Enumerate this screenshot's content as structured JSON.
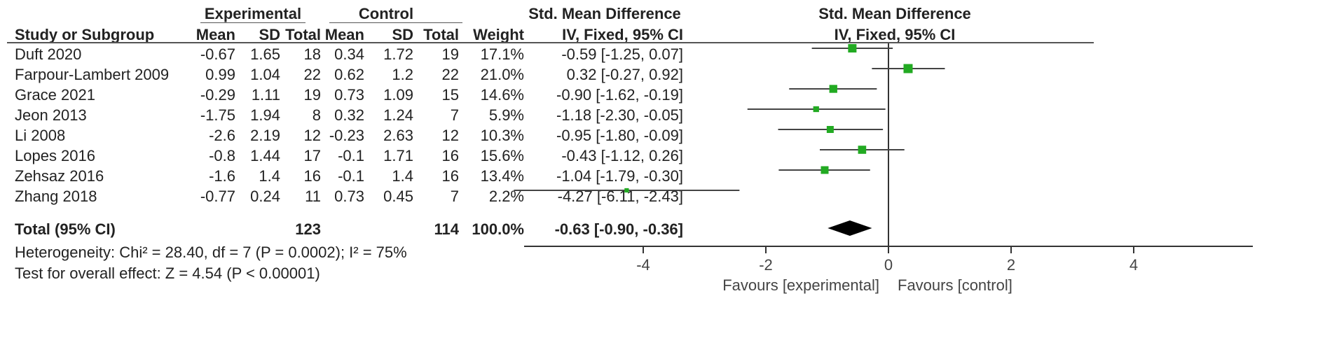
{
  "headers": {
    "group1": "Experimental",
    "group2": "Control",
    "effect": "Std. Mean Difference",
    "plot_title": "Std. Mean Difference",
    "study": "Study or Subgroup",
    "mean1": "Mean",
    "sd1": "SD",
    "total1": "Total",
    "mean2": "Mean",
    "sd2": "SD",
    "total2": "Total",
    "weight": "Weight",
    "method": "IV, Fixed, 95% CI",
    "plot_method": "IV, Fixed, 95% CI"
  },
  "studies": [
    {
      "name": "Duft 2020",
      "m1": "-0.67",
      "sd1": "1.65",
      "n1": "18",
      "m2": "0.34",
      "sd2": "1.72",
      "n2": "19",
      "weight": "17.1%",
      "ci": "-0.59 [-1.25, 0.07]"
    },
    {
      "name": "Farpour-Lambert 2009",
      "m1": "0.99",
      "sd1": "1.04",
      "n1": "22",
      "m2": "0.62",
      "sd2": "1.2",
      "n2": "22",
      "weight": "21.0%",
      "ci": "0.32 [-0.27, 0.92]"
    },
    {
      "name": "Grace  2021",
      "m1": "-0.29",
      "sd1": "1.11",
      "n1": "19",
      "m2": "0.73",
      "sd2": "1.09",
      "n2": "15",
      "weight": "14.6%",
      "ci": "-0.90 [-1.62, -0.19]"
    },
    {
      "name": "Jeon 2013",
      "m1": "-1.75",
      "sd1": "1.94",
      "n1": "8",
      "m2": "0.32",
      "sd2": "1.24",
      "n2": "7",
      "weight": "5.9%",
      "ci": "-1.18 [-2.30, -0.05]"
    },
    {
      "name": "Li 2008",
      "m1": "-2.6",
      "sd1": "2.19",
      "n1": "12",
      "m2": "-0.23",
      "sd2": "2.63",
      "n2": "12",
      "weight": "10.3%",
      "ci": "-0.95 [-1.80, -0.09]"
    },
    {
      "name": "Lopes 2016",
      "m1": "-0.8",
      "sd1": "1.44",
      "n1": "17",
      "m2": "-0.1",
      "sd2": "1.71",
      "n2": "16",
      "weight": "15.6%",
      "ci": "-0.43 [-1.12, 0.26]"
    },
    {
      "name": "Zehsaz 2016",
      "m1": "-1.6",
      "sd1": "1.4",
      "n1": "16",
      "m2": "-0.1",
      "sd2": "1.4",
      "n2": "16",
      "weight": "13.4%",
      "ci": "-1.04 [-1.79, -0.30]"
    },
    {
      "name": "Zhang 2018",
      "m1": "-0.77",
      "sd1": "0.24",
      "n1": "11",
      "m2": "0.73",
      "sd2": "0.45",
      "n2": "7",
      "weight": "2.2%",
      "ci": "-4.27 [-6.11, -2.43]"
    }
  ],
  "total": {
    "label": "Total (95% CI)",
    "n1": "123",
    "n2": "114",
    "weight": "100.0%",
    "ci": "-0.63 [-0.90, -0.36]"
  },
  "heterogeneity": "Heterogeneity: Chi² = 28.40, df = 7 (P = 0.0002); I² = 75%",
  "overall_effect": "Test for overall effect: Z = 4.54 (P < 0.00001)",
  "favours_left": "Favours [experimental]",
  "favours_right": "Favours [control]",
  "colors": {
    "marker": "#22aa22",
    "diamond": "#000000",
    "ci_line": "#444444"
  },
  "chart_data": {
    "type": "forest",
    "xlim": [
      -6,
      6
    ],
    "x_ticks": [
      -4,
      -2,
      0,
      2,
      4
    ],
    "x_tick_labels": [
      "-4",
      "-2",
      "0",
      "2",
      "4"
    ],
    "studies": [
      {
        "name": "Duft 2020",
        "est": -0.59,
        "lo": -1.25,
        "hi": 0.07,
        "weight": 17.1
      },
      {
        "name": "Farpour-Lambert 2009",
        "est": 0.32,
        "lo": -0.27,
        "hi": 0.92,
        "weight": 21.0
      },
      {
        "name": "Grace  2021",
        "est": -0.9,
        "lo": -1.62,
        "hi": -0.19,
        "weight": 14.6
      },
      {
        "name": "Jeon 2013",
        "est": -1.18,
        "lo": -2.3,
        "hi": -0.05,
        "weight": 5.9
      },
      {
        "name": "Li 2008",
        "est": -0.95,
        "lo": -1.8,
        "hi": -0.09,
        "weight": 10.3
      },
      {
        "name": "Lopes 2016",
        "est": -0.43,
        "lo": -1.12,
        "hi": 0.26,
        "weight": 15.6
      },
      {
        "name": "Zehsaz 2016",
        "est": -1.04,
        "lo": -1.79,
        "hi": -0.3,
        "weight": 13.4
      },
      {
        "name": "Zhang 2018",
        "est": -4.27,
        "lo": -6.11,
        "hi": -2.43,
        "weight": 2.2
      }
    ],
    "pooled": {
      "est": -0.63,
      "lo": -0.9,
      "hi": -0.36
    }
  }
}
